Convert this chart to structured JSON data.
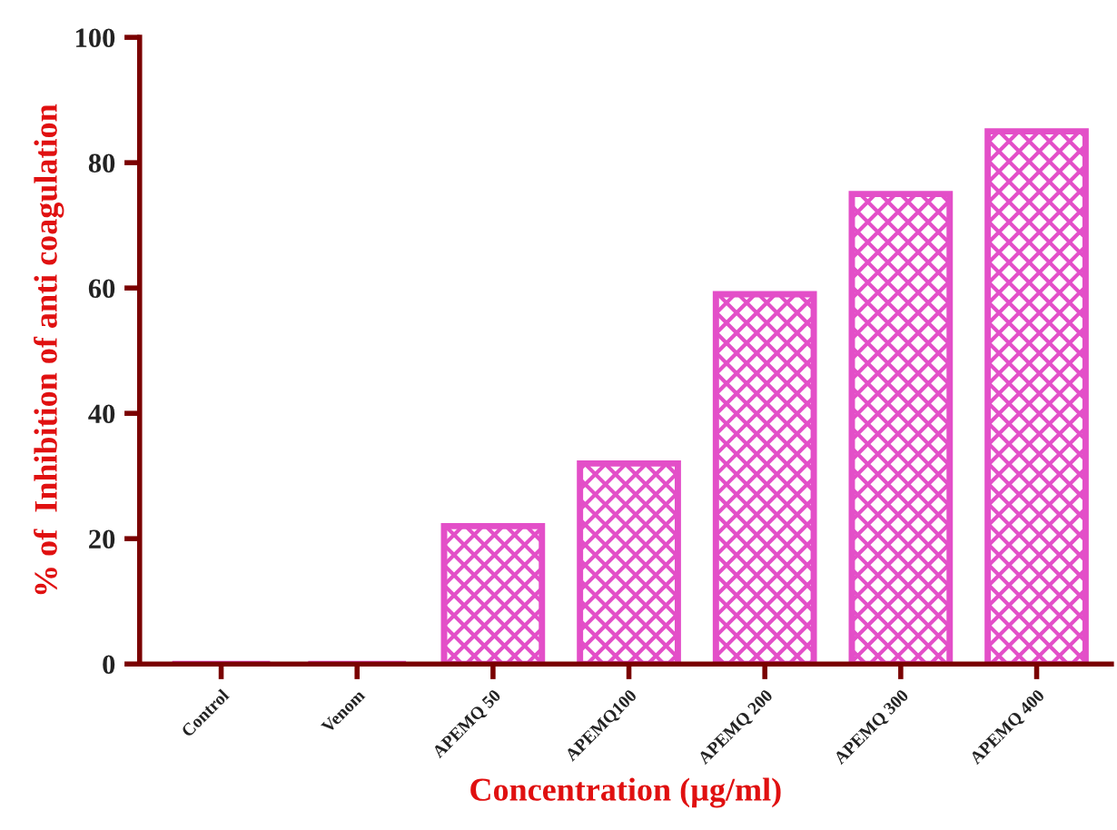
{
  "chart_data": {
    "type": "bar",
    "xlabel": "Concentration (µg/ml)",
    "ylabel": "% of  Inhibition of anti coagulation",
    "categories": [
      "Control",
      "Venom",
      "APEMQ 50",
      "APEMQ100",
      "APEMQ 200",
      "APEMQ 300",
      "APEMQ 400"
    ],
    "values": [
      0,
      0,
      22,
      32,
      59,
      75,
      85
    ],
    "color": "#e34fc8",
    "ylim": [
      0,
      100
    ],
    "yticks": [
      0,
      20,
      40,
      60,
      80,
      100
    ],
    "grid": false
  }
}
